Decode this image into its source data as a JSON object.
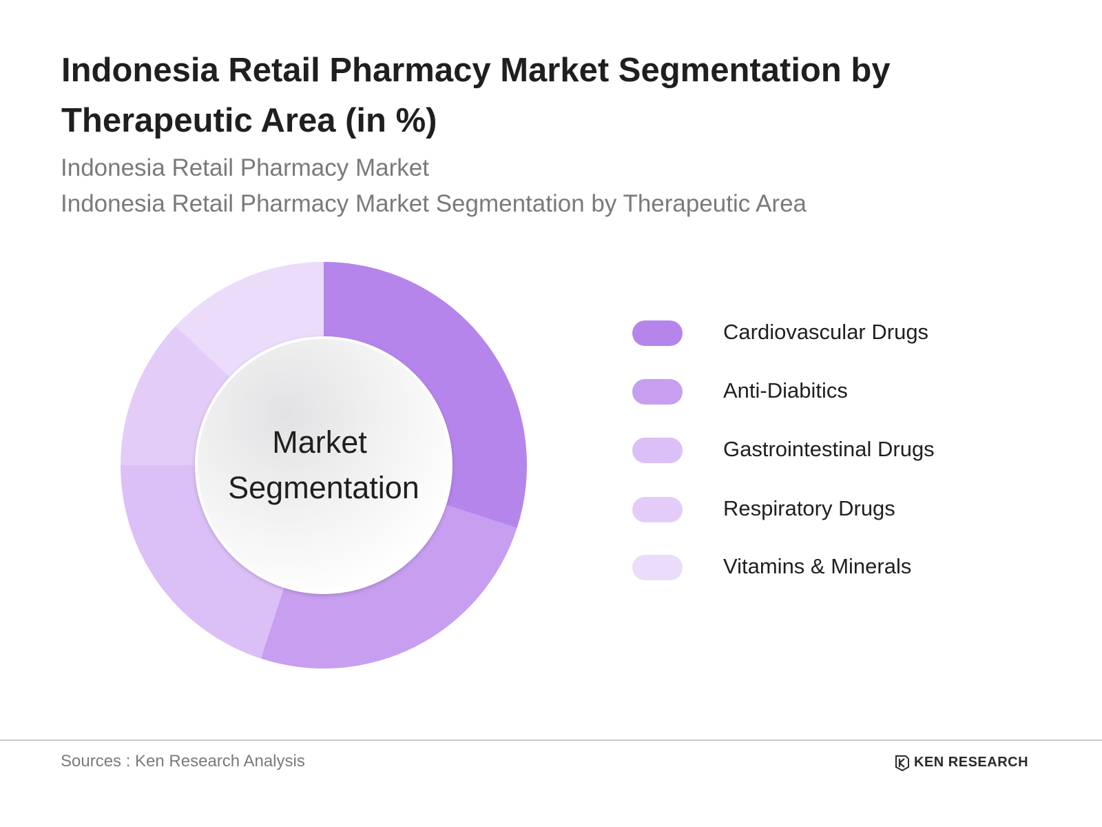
{
  "header": {
    "title": "Indonesia Retail Pharmacy Market Segmentation by Therapeutic Area (in %)",
    "subtitle_line1": "Indonesia Retail Pharmacy Market",
    "subtitle_line2": "Indonesia Retail Pharmacy Market Segmentation by Therapeutic Area"
  },
  "chart_data": {
    "type": "pie",
    "variant": "donut",
    "center_label": [
      "Market",
      "Segmentation"
    ],
    "categories": [
      "Cardiovascular Drugs",
      "Anti-Diabitics",
      "Gastrointestinal Drugs",
      "Respiratory Drugs",
      "Vitamins & Minerals"
    ],
    "values": [
      30,
      25,
      20,
      12,
      13
    ],
    "colors": [
      "#b585ec",
      "#c79ef0",
      "#dbbff7",
      "#e3cdf8",
      "#ebdcfa"
    ],
    "legend_position": "right",
    "start_angle": "12 o'clock",
    "direction": "clockwise"
  },
  "legend": {
    "items": [
      {
        "label": "Cardiovascular Drugs",
        "color": "#b585ec"
      },
      {
        "label": "Anti-Diabitics",
        "color": "#c79ef0"
      },
      {
        "label": "Gastrointestinal Drugs",
        "color": "#dbbff7"
      },
      {
        "label": "Respiratory Drugs",
        "color": "#e3cdf8"
      },
      {
        "label": "Vitamins & Minerals",
        "color": "#ebdcfa"
      }
    ]
  },
  "footer": {
    "source": "Sources : Ken Research Analysis",
    "brand": "KEN RESEARCH",
    "brand_icon": "ken-research-logo-icon"
  }
}
